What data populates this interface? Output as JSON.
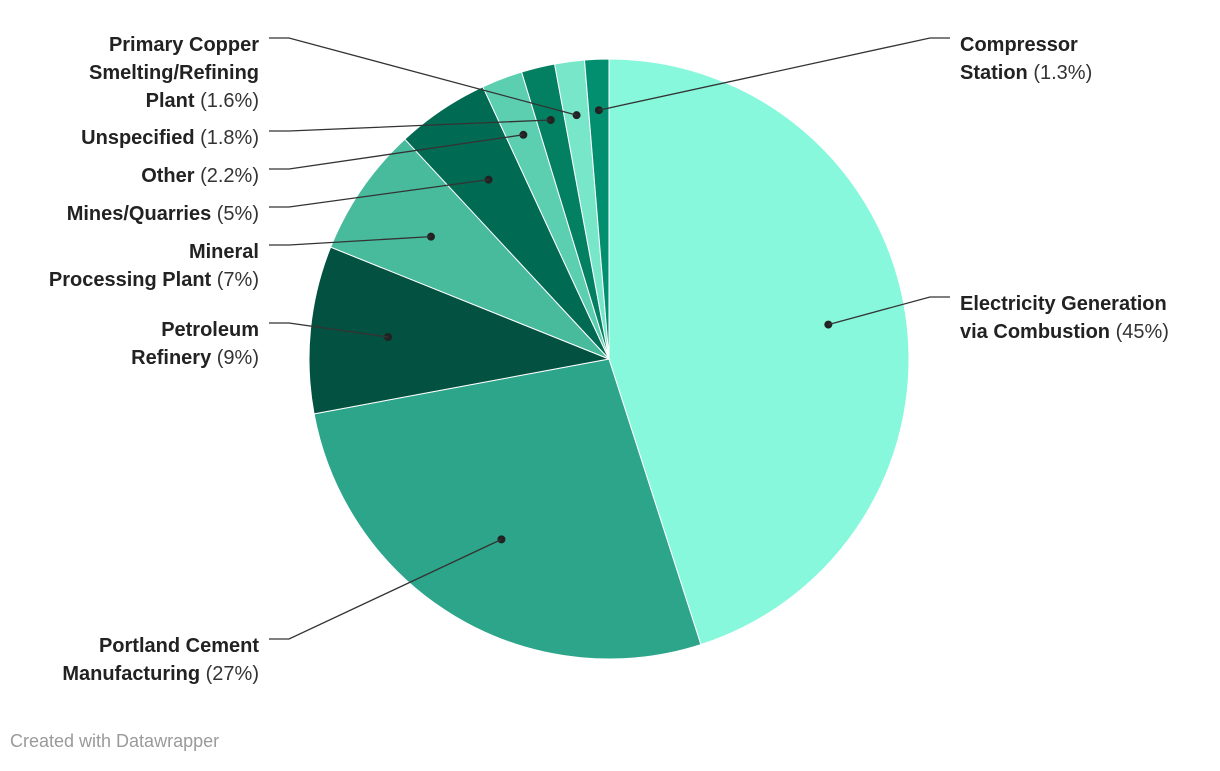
{
  "chart_data": {
    "type": "pie",
    "title": "",
    "slices": [
      {
        "label": "Electricity Generation via Combustion",
        "value": 45,
        "value_label": "(45%)",
        "color": "#88f8dc"
      },
      {
        "label": "Portland Cement Manufacturing",
        "value": 27,
        "value_label": "(27%)",
        "color": "#2ca58b"
      },
      {
        "label": "Petroleum Refinery",
        "value": 9,
        "value_label": "(9%)",
        "color": "#035140"
      },
      {
        "label": "Mineral Processing Plant",
        "value": 7,
        "value_label": "(7%)",
        "color": "#48bb9d"
      },
      {
        "label": "Mines/Quarries",
        "value": 5,
        "value_label": "(5%)",
        "color": "#016a52"
      },
      {
        "label": "Other",
        "value": 2.2,
        "value_label": "(2.2%)",
        "color": "#5ccfb0"
      },
      {
        "label": "Unspecified",
        "value": 1.8,
        "value_label": "(1.8%)",
        "color": "#038062"
      },
      {
        "label": "Primary Copper Smelting/Refining Plant",
        "value": 1.6,
        "value_label": "(1.6%)",
        "color": "#77e6c9"
      },
      {
        "label": "Compressor Station",
        "value": 1.3,
        "value_label": "(1.3%)",
        "color": "#028f70"
      }
    ],
    "start_angle": "12 o'clock",
    "direction": "clockwise",
    "legend": "none (direct labels)"
  },
  "footer": {
    "credit": "Created with Datawrapper"
  }
}
